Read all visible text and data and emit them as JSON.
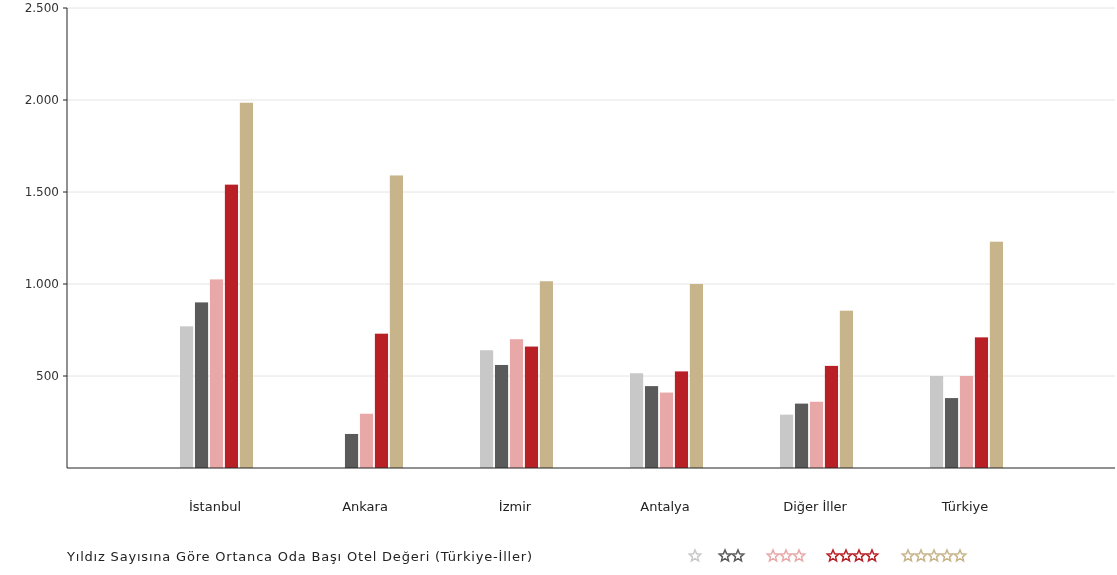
{
  "chart_data": {
    "type": "bar",
    "title": "Yıldız Sayısına Göre Ortanca Oda Başı Otel Değeri (Türkiye-İller)",
    "categories": [
      "İstanbul",
      "Ankara",
      "İzmir",
      "Antalya",
      "Diğer İller",
      "Türkiye"
    ],
    "series": [
      {
        "color": "#c8c8c8",
        "values": [
          770,
          null,
          640,
          515,
          290,
          500
        ]
      },
      {
        "color": "#5a5a5a",
        "values": [
          900,
          185,
          560,
          445,
          350,
          380
        ]
      },
      {
        "color": "#e8a8a8",
        "values": [
          1025,
          295,
          700,
          410,
          360,
          500
        ]
      },
      {
        "color": "#b82025",
        "values": [
          1540,
          730,
          660,
          525,
          555,
          710
        ]
      },
      {
        "color": "#c8b48a",
        "values": [
          1985,
          1590,
          1015,
          1000,
          855,
          1230
        ]
      }
    ],
    "ylim": [
      0,
      2500
    ],
    "yticks": [
      {
        "value": 500,
        "label": "500"
      },
      {
        "value": 1000,
        "label": "1.000"
      },
      {
        "value": 1500,
        "label": "1.500"
      },
      {
        "value": 2000,
        "label": "2.000"
      },
      {
        "value": 2500,
        "label": "2.500"
      }
    ],
    "grid": "y"
  }
}
